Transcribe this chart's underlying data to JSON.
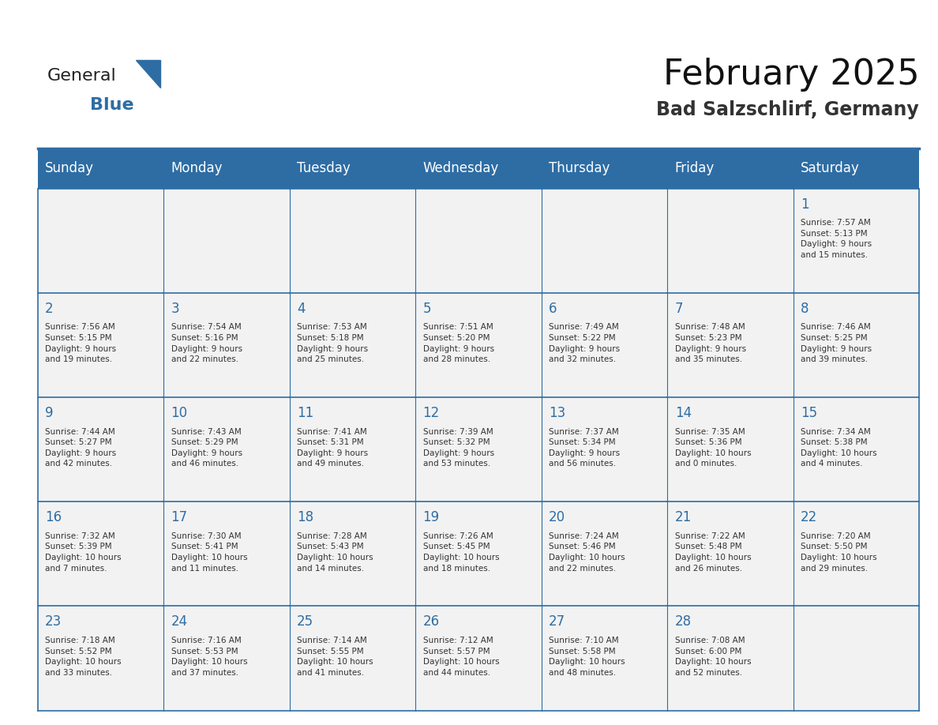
{
  "title": "February 2025",
  "subtitle": "Bad Salzschlirf, Germany",
  "days_of_week": [
    "Sunday",
    "Monday",
    "Tuesday",
    "Wednesday",
    "Thursday",
    "Friday",
    "Saturday"
  ],
  "header_bg": "#2E6DA4",
  "header_text": "#FFFFFF",
  "cell_bg_light": "#F2F2F2",
  "cell_bg_white": "#FFFFFF",
  "border_color": "#2E6DA4",
  "day_number_color": "#2E6DA4",
  "text_color": "#333333",
  "logo_general_color": "#222222",
  "logo_blue_color": "#2E6DA4",
  "calendar_data": [
    [
      {
        "day": null,
        "info": null
      },
      {
        "day": null,
        "info": null
      },
      {
        "day": null,
        "info": null
      },
      {
        "day": null,
        "info": null
      },
      {
        "day": null,
        "info": null
      },
      {
        "day": null,
        "info": null
      },
      {
        "day": 1,
        "info": "Sunrise: 7:57 AM\nSunset: 5:13 PM\nDaylight: 9 hours\nand 15 minutes."
      }
    ],
    [
      {
        "day": 2,
        "info": "Sunrise: 7:56 AM\nSunset: 5:15 PM\nDaylight: 9 hours\nand 19 minutes."
      },
      {
        "day": 3,
        "info": "Sunrise: 7:54 AM\nSunset: 5:16 PM\nDaylight: 9 hours\nand 22 minutes."
      },
      {
        "day": 4,
        "info": "Sunrise: 7:53 AM\nSunset: 5:18 PM\nDaylight: 9 hours\nand 25 minutes."
      },
      {
        "day": 5,
        "info": "Sunrise: 7:51 AM\nSunset: 5:20 PM\nDaylight: 9 hours\nand 28 minutes."
      },
      {
        "day": 6,
        "info": "Sunrise: 7:49 AM\nSunset: 5:22 PM\nDaylight: 9 hours\nand 32 minutes."
      },
      {
        "day": 7,
        "info": "Sunrise: 7:48 AM\nSunset: 5:23 PM\nDaylight: 9 hours\nand 35 minutes."
      },
      {
        "day": 8,
        "info": "Sunrise: 7:46 AM\nSunset: 5:25 PM\nDaylight: 9 hours\nand 39 minutes."
      }
    ],
    [
      {
        "day": 9,
        "info": "Sunrise: 7:44 AM\nSunset: 5:27 PM\nDaylight: 9 hours\nand 42 minutes."
      },
      {
        "day": 10,
        "info": "Sunrise: 7:43 AM\nSunset: 5:29 PM\nDaylight: 9 hours\nand 46 minutes."
      },
      {
        "day": 11,
        "info": "Sunrise: 7:41 AM\nSunset: 5:31 PM\nDaylight: 9 hours\nand 49 minutes."
      },
      {
        "day": 12,
        "info": "Sunrise: 7:39 AM\nSunset: 5:32 PM\nDaylight: 9 hours\nand 53 minutes."
      },
      {
        "day": 13,
        "info": "Sunrise: 7:37 AM\nSunset: 5:34 PM\nDaylight: 9 hours\nand 56 minutes."
      },
      {
        "day": 14,
        "info": "Sunrise: 7:35 AM\nSunset: 5:36 PM\nDaylight: 10 hours\nand 0 minutes."
      },
      {
        "day": 15,
        "info": "Sunrise: 7:34 AM\nSunset: 5:38 PM\nDaylight: 10 hours\nand 4 minutes."
      }
    ],
    [
      {
        "day": 16,
        "info": "Sunrise: 7:32 AM\nSunset: 5:39 PM\nDaylight: 10 hours\nand 7 minutes."
      },
      {
        "day": 17,
        "info": "Sunrise: 7:30 AM\nSunset: 5:41 PM\nDaylight: 10 hours\nand 11 minutes."
      },
      {
        "day": 18,
        "info": "Sunrise: 7:28 AM\nSunset: 5:43 PM\nDaylight: 10 hours\nand 14 minutes."
      },
      {
        "day": 19,
        "info": "Sunrise: 7:26 AM\nSunset: 5:45 PM\nDaylight: 10 hours\nand 18 minutes."
      },
      {
        "day": 20,
        "info": "Sunrise: 7:24 AM\nSunset: 5:46 PM\nDaylight: 10 hours\nand 22 minutes."
      },
      {
        "day": 21,
        "info": "Sunrise: 7:22 AM\nSunset: 5:48 PM\nDaylight: 10 hours\nand 26 minutes."
      },
      {
        "day": 22,
        "info": "Sunrise: 7:20 AM\nSunset: 5:50 PM\nDaylight: 10 hours\nand 29 minutes."
      }
    ],
    [
      {
        "day": 23,
        "info": "Sunrise: 7:18 AM\nSunset: 5:52 PM\nDaylight: 10 hours\nand 33 minutes."
      },
      {
        "day": 24,
        "info": "Sunrise: 7:16 AM\nSunset: 5:53 PM\nDaylight: 10 hours\nand 37 minutes."
      },
      {
        "day": 25,
        "info": "Sunrise: 7:14 AM\nSunset: 5:55 PM\nDaylight: 10 hours\nand 41 minutes."
      },
      {
        "day": 26,
        "info": "Sunrise: 7:12 AM\nSunset: 5:57 PM\nDaylight: 10 hours\nand 44 minutes."
      },
      {
        "day": 27,
        "info": "Sunrise: 7:10 AM\nSunset: 5:58 PM\nDaylight: 10 hours\nand 48 minutes."
      },
      {
        "day": 28,
        "info": "Sunrise: 7:08 AM\nSunset: 6:00 PM\nDaylight: 10 hours\nand 52 minutes."
      },
      {
        "day": null,
        "info": null
      }
    ]
  ]
}
